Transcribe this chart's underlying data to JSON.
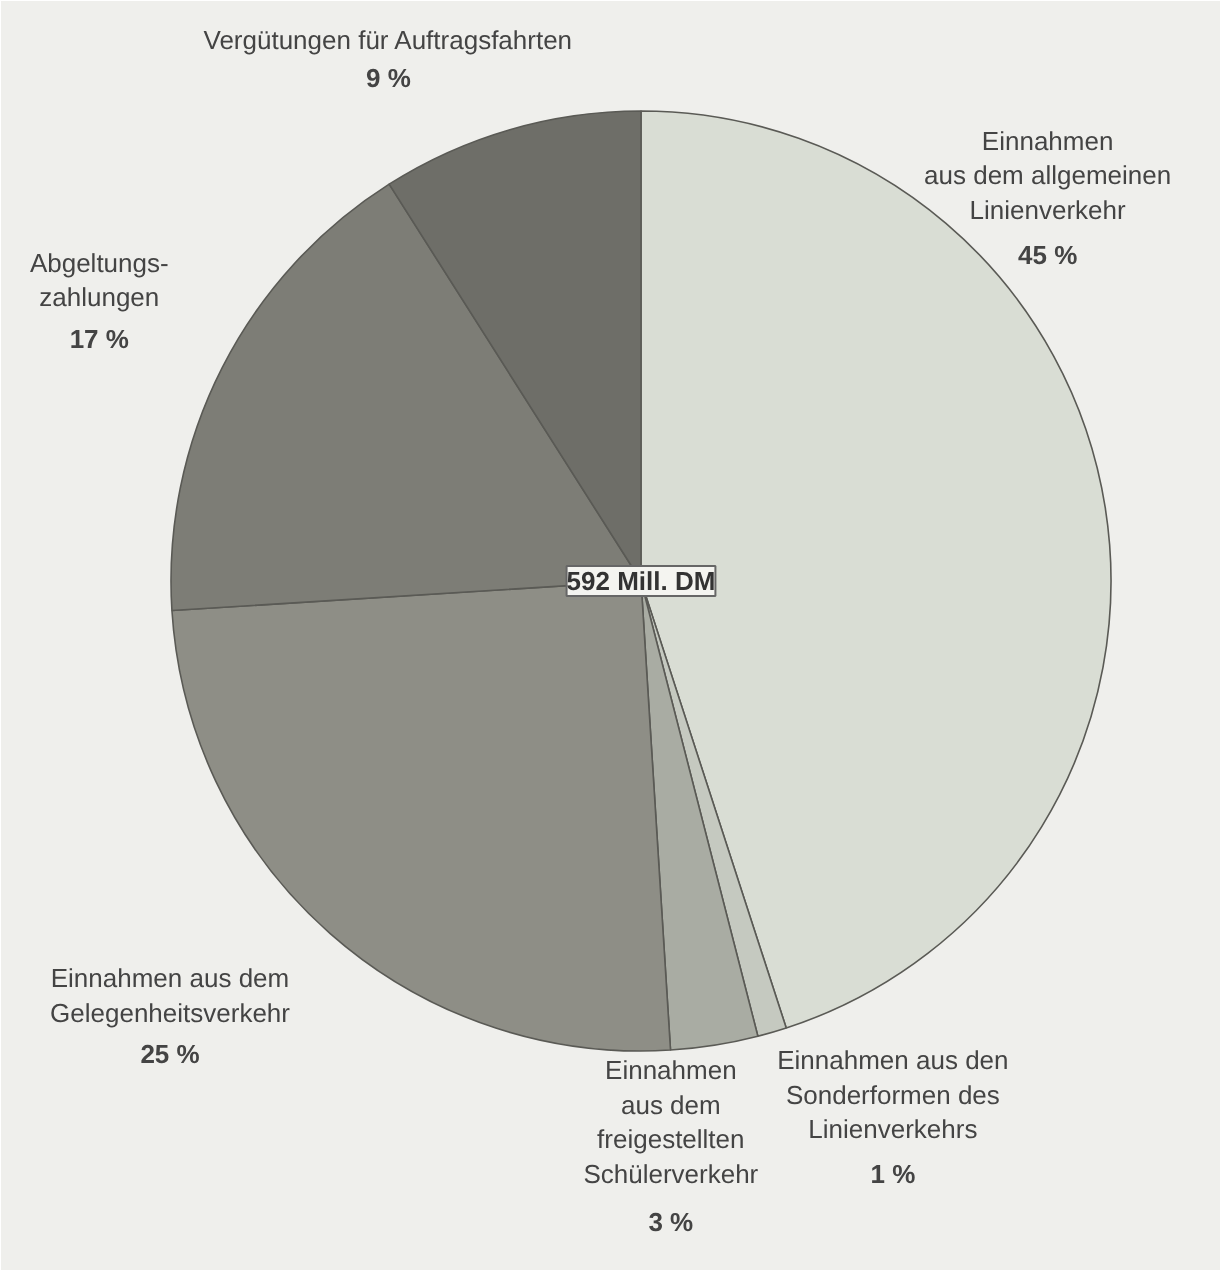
{
  "chart_data": {
    "type": "pie",
    "categories": [
      "Einnahmen\naus dem allgemeinen\nLinienverkehr",
      "Einnahmen aus den\nSonderformen des\nLinienverkehrs",
      "Einnahmen\naus dem\nfreigestellten\nSchülerverkehr",
      "Einnahmen aus dem\nGelegenheitsverkehr",
      "Abgeltungs-\nzahlungen",
      "Vergütungen für Auftragsfahrten"
    ],
    "values": [
      45,
      1,
      3,
      25,
      17,
      9
    ],
    "colors": [
      "#d9ddd4",
      "#c5c9c0",
      "#a9aca3",
      "#8e8e86",
      "#7d7d76",
      "#6e6e68"
    ],
    "value_labels": [
      "45 %",
      "1 %",
      "3 %",
      "25 %",
      "17 %",
      "9 %"
    ],
    "annotations": [
      "592 Mill. DM"
    ]
  }
}
